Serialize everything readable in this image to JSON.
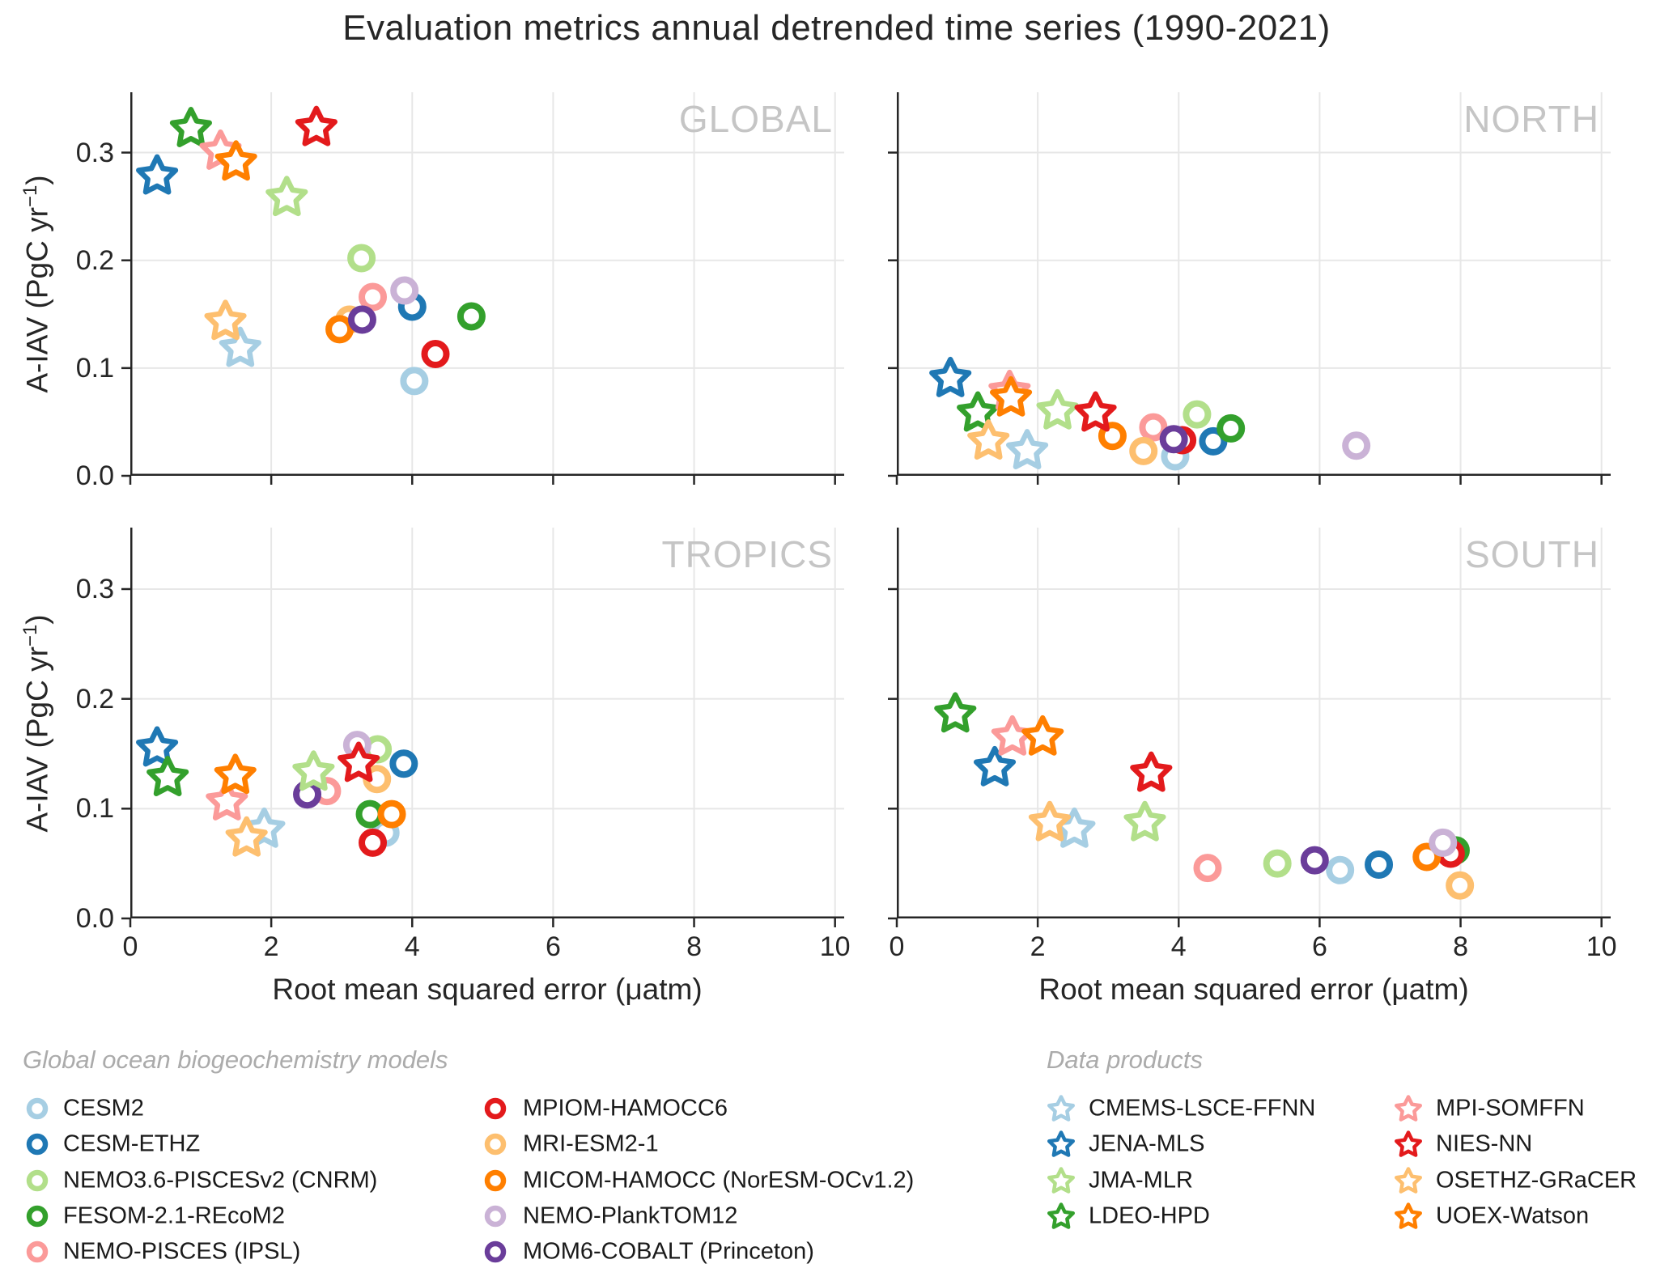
{
  "title": "Evaluation metrics annual detrended time series (1990-2021)",
  "axes": {
    "x_label": "Root mean squared error (μatm)",
    "y_label_main": "A-IAV (PgC yr",
    "y_label_sup": "−1",
    "y_label_close": ")",
    "x_tick_labels": [
      "0",
      "2",
      "4",
      "6",
      "8",
      "10"
    ],
    "y_tick_labels": [
      "0.0",
      "0.1",
      "0.2",
      "0.3"
    ]
  },
  "legend": {
    "models_header": "Global ocean biogeochemistry models",
    "products_header": "Data products",
    "models": [
      {
        "label": "CESM2",
        "color": "#a6cee3"
      },
      {
        "label": "CESM-ETHZ",
        "color": "#1f78b4"
      },
      {
        "label": "NEMO3.6-PISCESv2 (CNRM)",
        "color": "#b2df8a"
      },
      {
        "label": "FESOM-2.1-REcoM2",
        "color": "#33a02c"
      },
      {
        "label": "NEMO-PISCES (IPSL)",
        "color": "#fb9a99"
      },
      {
        "label": "MPIOM-HAMOCC6",
        "color": "#e31a1c"
      },
      {
        "label": "MRI-ESM2-1",
        "color": "#fdbf6f"
      },
      {
        "label": "MICOM-HAMOCC (NorESM-OCv1.2)",
        "color": "#ff7f00"
      },
      {
        "label": "NEMO-PlankTOM12",
        "color": "#cab2d6"
      },
      {
        "label": "MOM6-COBALT (Princeton)",
        "color": "#6a3d9a"
      }
    ],
    "products": [
      {
        "label": "CMEMS-LSCE-FFNN",
        "color": "#a6cee3"
      },
      {
        "label": "JENA-MLS",
        "color": "#1f78b4"
      },
      {
        "label": "JMA-MLR",
        "color": "#b2df8a"
      },
      {
        "label": "LDEO-HPD",
        "color": "#33a02c"
      },
      {
        "label": "MPI-SOMFFN",
        "color": "#fb9a99"
      },
      {
        "label": "NIES-NN",
        "color": "#e31a1c"
      },
      {
        "label": "OSETHZ-GRaCER",
        "color": "#fdbf6f"
      },
      {
        "label": "UOEX-Watson",
        "color": "#ff7f00"
      }
    ]
  },
  "chart_data": {
    "type": "scatter",
    "title": "Evaluation metrics annual detrended time series (1990-2021)",
    "xlabel": "Root mean squared error (μatm)",
    "ylabel": "A-IAV (PgC yr−1)",
    "xlim": [
      0,
      10.13
    ],
    "ylim": [
      0,
      0.356
    ],
    "x_ticks": [
      0,
      2,
      4,
      6,
      8,
      10
    ],
    "y_ticks": [
      0.0,
      0.1,
      0.2,
      0.3
    ],
    "grid": true,
    "marker_groups": {
      "models": "circle",
      "products": "star"
    },
    "panels": [
      {
        "label": "GLOBAL",
        "models": {
          "CESM2": [
            4.03,
            0.088
          ],
          "CESM-ETHZ": [
            4.0,
            0.157
          ],
          "NEMO3.6-PISCESv2 (CNRM)": [
            3.28,
            0.202
          ],
          "FESOM-2.1-REcoM2": [
            4.84,
            0.148
          ],
          "NEMO-PISCES (IPSL)": [
            3.44,
            0.166
          ],
          "MPIOM-HAMOCC6": [
            4.33,
            0.113
          ],
          "MRI-ESM2-1": [
            3.11,
            0.145
          ],
          "MICOM-HAMOCC (NorESM-OCv1.2)": [
            2.97,
            0.136
          ],
          "NEMO-PlankTOM12": [
            3.89,
            0.172
          ],
          "MOM6-COBALT (Princeton)": [
            3.29,
            0.145
          ]
        },
        "products": {
          "CMEMS-LSCE-FFNN": [
            1.56,
            0.118
          ],
          "JENA-MLS": [
            0.38,
            0.278
          ],
          "JMA-MLR": [
            2.22,
            0.258
          ],
          "LDEO-HPD": [
            0.86,
            0.322
          ],
          "MPI-SOMFFN": [
            1.28,
            0.301
          ],
          "NIES-NN": [
            2.64,
            0.323
          ],
          "OSETHZ-GRaCER": [
            1.35,
            0.143
          ],
          "UOEX-Watson": [
            1.5,
            0.291
          ]
        }
      },
      {
        "label": "NORTH",
        "models": {
          "CESM2": [
            3.95,
            0.018
          ],
          "CESM-ETHZ": [
            4.49,
            0.032
          ],
          "NEMO3.6-PISCESv2 (CNRM)": [
            4.26,
            0.057
          ],
          "FESOM-2.1-REcoM2": [
            4.74,
            0.044
          ],
          "NEMO-PISCES (IPSL)": [
            3.64,
            0.045
          ],
          "MPIOM-HAMOCC6": [
            4.05,
            0.033
          ],
          "MRI-ESM2-1": [
            3.5,
            0.023
          ],
          "MICOM-HAMOCC (NorESM-OCv1.2)": [
            3.06,
            0.037
          ],
          "NEMO-PlankTOM12": [
            6.52,
            0.028
          ],
          "MOM6-COBALT (Princeton)": [
            3.93,
            0.034
          ]
        },
        "products": {
          "CMEMS-LSCE-FFNN": [
            1.85,
            0.023
          ],
          "JENA-MLS": [
            0.76,
            0.09
          ],
          "JMA-MLR": [
            2.28,
            0.06
          ],
          "LDEO-HPD": [
            1.15,
            0.058
          ],
          "MPI-SOMFFN": [
            1.6,
            0.078
          ],
          "NIES-NN": [
            2.82,
            0.058
          ],
          "OSETHZ-GRaCER": [
            1.3,
            0.032
          ],
          "UOEX-Watson": [
            1.62,
            0.072
          ]
        }
      },
      {
        "label": "TROPICS",
        "models": {
          "CESM2": [
            3.62,
            0.078
          ],
          "CESM-ETHZ": [
            3.88,
            0.141
          ],
          "NEMO3.6-PISCESv2 (CNRM)": [
            3.51,
            0.154
          ],
          "FESOM-2.1-REcoM2": [
            3.4,
            0.095
          ],
          "NEMO-PISCES (IPSL)": [
            2.79,
            0.116
          ],
          "MPIOM-HAMOCC6": [
            3.44,
            0.069
          ],
          "MRI-ESM2-1": [
            3.5,
            0.127
          ],
          "MICOM-HAMOCC (NorESM-OCv1.2)": [
            3.71,
            0.095
          ],
          "NEMO-PlankTOM12": [
            3.22,
            0.158
          ],
          "MOM6-COBALT (Princeton)": [
            2.51,
            0.113
          ]
        },
        "products": {
          "CMEMS-LSCE-FFNN": [
            1.9,
            0.081
          ],
          "JENA-MLS": [
            0.38,
            0.155
          ],
          "JMA-MLR": [
            2.6,
            0.133
          ],
          "LDEO-HPD": [
            0.53,
            0.128
          ],
          "MPI-SOMFFN": [
            1.37,
            0.106
          ],
          "NIES-NN": [
            3.24,
            0.141
          ],
          "OSETHZ-GRaCER": [
            1.65,
            0.073
          ],
          "UOEX-Watson": [
            1.49,
            0.13
          ]
        }
      },
      {
        "label": "SOUTH",
        "models": {
          "CESM2": [
            6.29,
            0.044
          ],
          "CESM-ETHZ": [
            6.84,
            0.049
          ],
          "NEMO3.6-PISCESv2 (CNRM)": [
            5.4,
            0.05
          ],
          "FESOM-2.1-REcoM2": [
            7.93,
            0.062
          ],
          "NEMO-PISCES (IPSL)": [
            4.41,
            0.046
          ],
          "MPIOM-HAMOCC6": [
            7.86,
            0.059
          ],
          "MRI-ESM2-1": [
            7.99,
            0.03
          ],
          "MICOM-HAMOCC (NorESM-OCv1.2)": [
            7.52,
            0.056
          ],
          "NEMO-PlankTOM12": [
            7.75,
            0.069
          ],
          "MOM6-COBALT (Princeton)": [
            5.93,
            0.053
          ]
        },
        "products": {
          "CMEMS-LSCE-FFNN": [
            2.52,
            0.081
          ],
          "JENA-MLS": [
            1.39,
            0.137
          ],
          "JMA-MLR": [
            3.52,
            0.087
          ],
          "LDEO-HPD": [
            0.83,
            0.186
          ],
          "MPI-SOMFFN": [
            1.64,
            0.165
          ],
          "NIES-NN": [
            3.61,
            0.132
          ],
          "OSETHZ-GRaCER": [
            2.17,
            0.087
          ],
          "UOEX-Watson": [
            2.07,
            0.165
          ]
        }
      }
    ],
    "style": {
      "grid_color": "#e7e7e7",
      "spine_color": "#262626",
      "panel_label_color": "#c5c5c5",
      "marker_fill": "#ffffff"
    }
  }
}
